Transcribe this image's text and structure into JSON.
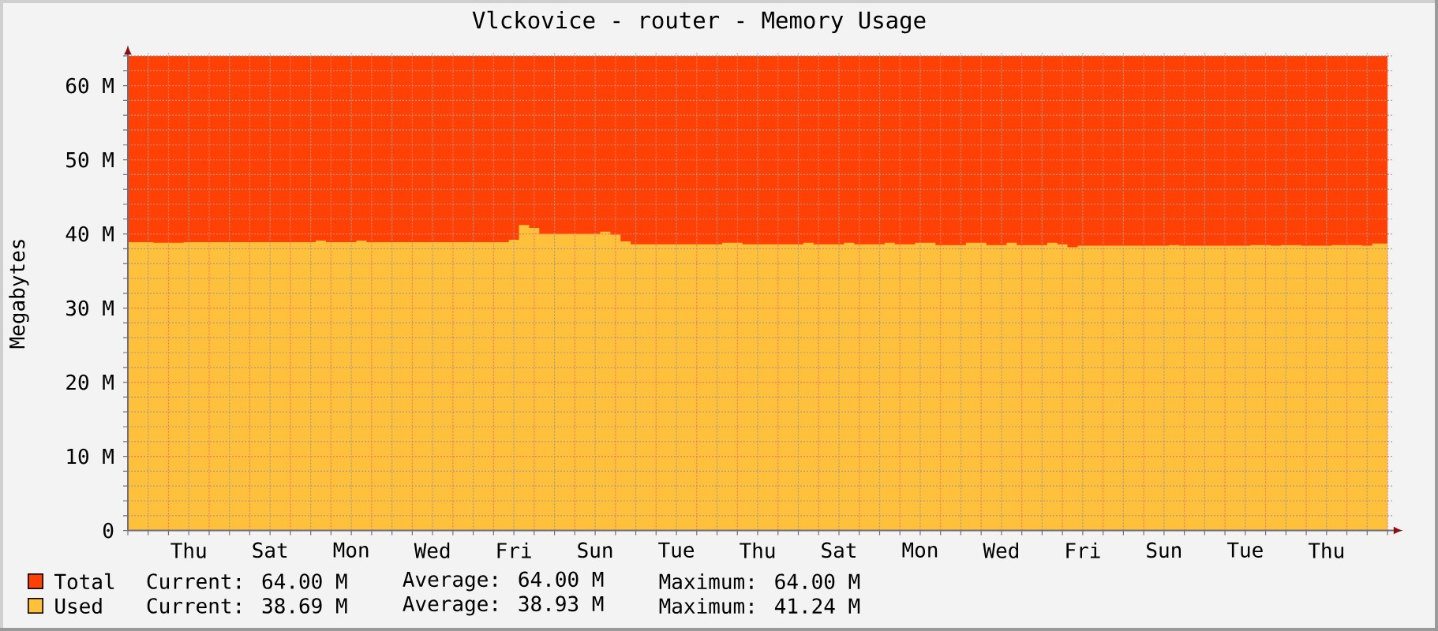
{
  "chart_data": {
    "type": "area",
    "title": "Vlckovice - router - Memory Usage",
    "ylabel": "Megabytes",
    "categories": [
      null,
      null,
      null,
      null,
      null,
      null,
      "Thu",
      null,
      null,
      null,
      null,
      null,
      null,
      null,
      "Sat",
      null,
      null,
      null,
      null,
      null,
      null,
      null,
      "Mon",
      null,
      null,
      null,
      null,
      null,
      null,
      null,
      "Wed",
      null,
      null,
      null,
      null,
      null,
      null,
      null,
      "Fri",
      null,
      null,
      null,
      null,
      null,
      null,
      null,
      "Sun",
      null,
      null,
      null,
      null,
      null,
      null,
      null,
      "Tue",
      null,
      null,
      null,
      null,
      null,
      null,
      null,
      "Thu",
      null,
      null,
      null,
      null,
      null,
      null,
      null,
      "Sat",
      null,
      null,
      null,
      null,
      null,
      null,
      null,
      "Mon",
      null,
      null,
      null,
      null,
      null,
      null,
      null,
      "Wed",
      null,
      null,
      null,
      null,
      null,
      null,
      null,
      "Fri",
      null,
      null,
      null,
      null,
      null,
      null,
      null,
      "Sun",
      null,
      null,
      null,
      null,
      null,
      null,
      null,
      "Tue",
      null,
      null,
      null,
      null,
      null,
      null,
      null,
      "Thu",
      null,
      null,
      null,
      null,
      null,
      null
    ],
    "ylim": [
      0,
      64.4
    ],
    "yticks": [
      0,
      {
        "value": 2,
        "label": null
      },
      {
        "value": 4,
        "label": null
      },
      {
        "value": 6,
        "label": null
      },
      {
        "value": 8,
        "label": null
      },
      {
        "value": 10,
        "label": "10 M"
      },
      {
        "value": 12,
        "label": null
      },
      {
        "value": 14,
        "label": null
      },
      {
        "value": 16,
        "label": null
      },
      {
        "value": 18,
        "label": null
      },
      {
        "value": 20,
        "label": "20 M"
      },
      {
        "value": 22,
        "label": null
      },
      {
        "value": 24,
        "label": null
      },
      {
        "value": 26,
        "label": null
      },
      {
        "value": 28,
        "label": null
      },
      {
        "value": 30,
        "label": "30 M"
      },
      {
        "value": 32,
        "label": null
      },
      {
        "value": 34,
        "label": null
      },
      {
        "value": 36,
        "label": null
      },
      {
        "value": 38,
        "label": null
      },
      {
        "value": 40,
        "label": "40 M"
      },
      {
        "value": 42,
        "label": null
      },
      {
        "value": 44,
        "label": null
      },
      {
        "value": 46,
        "label": null
      },
      {
        "value": 48,
        "label": null
      },
      {
        "value": 50,
        "label": "50 M"
      },
      {
        "value": 52,
        "label": null
      },
      {
        "value": 54,
        "label": null
      },
      {
        "value": 56,
        "label": null
      },
      {
        "value": 58,
        "label": null
      },
      {
        "value": 60,
        "label": "60 M"
      },
      {
        "value": 62,
        "label": null
      },
      {
        "value": 64,
        "label": null
      }
    ],
    "grid": true,
    "legend": "bottom",
    "series": [
      {
        "name": "Total",
        "color": "#ff4105",
        "values": [
          64,
          64,
          64,
          64,
          64,
          64,
          64,
          64,
          64,
          64,
          64,
          64,
          64,
          64,
          64,
          64,
          64,
          64,
          64,
          64,
          64,
          64,
          64,
          64,
          64,
          64,
          64,
          64,
          64,
          64,
          64,
          64,
          64,
          64,
          64,
          64,
          64,
          64,
          64,
          64,
          64,
          64,
          64,
          64,
          64,
          64,
          64,
          64,
          64,
          64,
          64,
          64,
          64,
          64,
          64,
          64,
          64,
          64,
          64,
          64,
          64,
          64,
          64,
          64,
          64,
          64,
          64,
          64,
          64,
          64,
          64,
          64,
          64,
          64,
          64,
          64,
          64,
          64,
          64,
          64,
          64,
          64,
          64,
          64,
          64,
          64,
          64,
          64,
          64,
          64,
          64,
          64,
          64,
          64,
          64,
          64,
          64,
          64,
          64,
          64,
          64,
          64,
          64,
          64,
          64,
          64,
          64,
          64,
          64,
          64,
          64,
          64,
          64,
          64,
          64,
          64,
          64,
          64,
          64,
          64,
          64,
          64,
          64,
          64,
          64
        ]
      },
      {
        "name": "Used",
        "color": "#ffc13b",
        "values": [
          38.9,
          38.9,
          38.9,
          38.8,
          38.8,
          38.8,
          38.9,
          38.9,
          38.9,
          38.9,
          38.9,
          38.9,
          38.9,
          38.9,
          38.9,
          38.9,
          38.9,
          38.9,
          38.9,
          39.1,
          38.9,
          38.9,
          38.9,
          39.1,
          38.9,
          38.9,
          38.9,
          38.9,
          38.9,
          38.9,
          38.9,
          38.9,
          38.9,
          38.9,
          38.9,
          38.9,
          38.9,
          38.9,
          39.2,
          41.2,
          40.8,
          40.0,
          40.0,
          40.0,
          40.0,
          40.0,
          40.0,
          40.3,
          39.9,
          39.0,
          38.6,
          38.6,
          38.6,
          38.6,
          38.6,
          38.6,
          38.6,
          38.6,
          38.6,
          38.8,
          38.8,
          38.6,
          38.6,
          38.6,
          38.6,
          38.6,
          38.6,
          38.8,
          38.6,
          38.6,
          38.6,
          38.8,
          38.6,
          38.6,
          38.6,
          38.8,
          38.6,
          38.6,
          38.8,
          38.8,
          38.5,
          38.5,
          38.5,
          38.8,
          38.8,
          38.5,
          38.5,
          38.8,
          38.5,
          38.5,
          38.5,
          38.8,
          38.6,
          38.2,
          38.4,
          38.4,
          38.4,
          38.4,
          38.4,
          38.4,
          38.4,
          38.4,
          38.4,
          38.5,
          38.4,
          38.4,
          38.4,
          38.4,
          38.4,
          38.4,
          38.4,
          38.5,
          38.5,
          38.4,
          38.5,
          38.5,
          38.4,
          38.4,
          38.4,
          38.5,
          38.5,
          38.5,
          38.4,
          38.7,
          38.7
        ]
      }
    ],
    "annotations": [
      "Current: 64.00 M",
      "Average: 64.00 M",
      "Maximum: 64.00 M",
      "Current: 38.69 M",
      "Average: 38.93 M",
      "Maximum: 41.24 M"
    ]
  }
}
